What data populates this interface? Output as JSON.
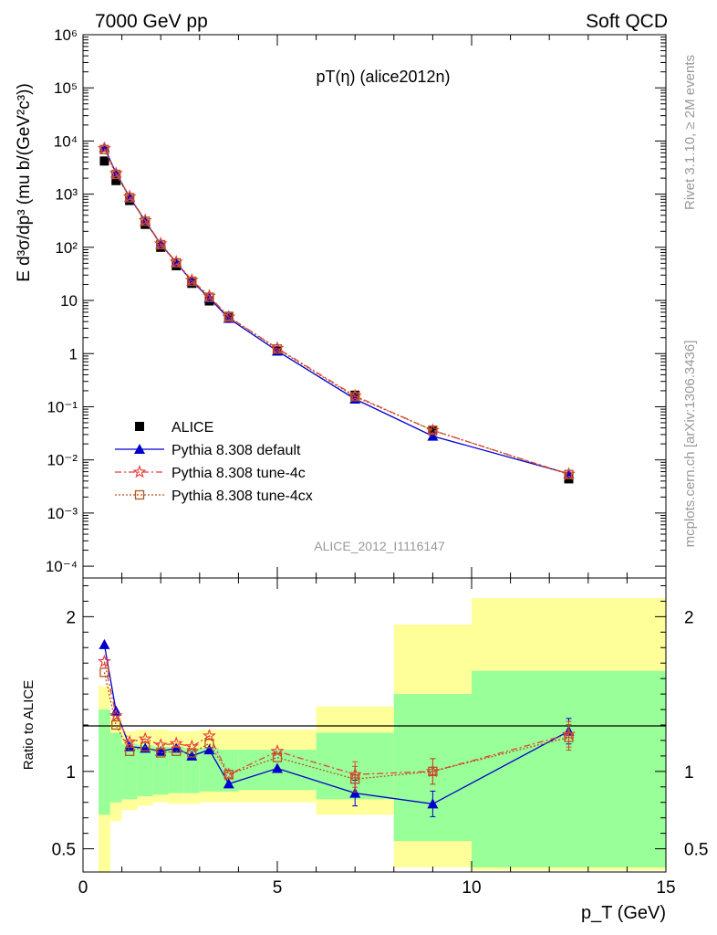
{
  "header": {
    "left": "7000 GeV pp",
    "right": "Soft QCD"
  },
  "side": {
    "rivet": "Rivet 3.1.10, ≥ 2M events",
    "mcplots": "mcplots.cern.ch [arXiv:1306.3436]"
  },
  "watermark": "ALICE_2012_I1116147",
  "chart_data": [
    {
      "type": "line",
      "title": "pT(η) (alice2012n)",
      "ylabel": "E d³σ/dp³ (mu b/(GeV²c³))",
      "yscale": "log",
      "ylim": [
        6e-05,
        1000000
      ],
      "xlim": [
        0,
        15
      ],
      "yticks": [
        "10⁻⁴",
        "10⁻³",
        "10⁻²",
        "10⁻¹",
        "1",
        "10",
        "10²",
        "10³",
        "10⁴",
        "10⁵",
        "10⁶"
      ],
      "legend_position": "bottom-left",
      "x": [
        0.55,
        0.85,
        1.2,
        1.6,
        2.0,
        2.4,
        2.8,
        3.25,
        3.75,
        5.0,
        7.0,
        9.0,
        12.5
      ],
      "series": [
        {
          "name": "ALICE",
          "color": "#000000",
          "marker": "square-filled",
          "values": [
            4200,
            1800,
            760,
            270,
            100,
            45,
            21,
            9.8,
            5.0,
            1.12,
            0.165,
            0.036,
            0.0044
          ]
        },
        {
          "name": "Pythia 8.308 default",
          "color": "#0000cc",
          "marker": "triangle-filled",
          "values": [
            7600,
            2500,
            880,
            310,
            114,
            52,
            23,
            11.1,
            4.6,
            1.12,
            0.14,
            0.028,
            0.0055
          ]
        },
        {
          "name": "Pythia 8.308 tune-4c",
          "color": "#e83f3f",
          "marker": "star-open",
          "values": [
            7200,
            2450,
            900,
            320,
            117,
            53,
            24,
            12.1,
            4.9,
            1.26,
            0.16,
            0.036,
            0.0054
          ]
        },
        {
          "name": "Pythia 8.308 tune-4cx",
          "color": "#b5541e",
          "marker": "square-open",
          "values": [
            6900,
            2350,
            860,
            310,
            112,
            51,
            23,
            11.5,
            4.9,
            1.22,
            0.155,
            0.036,
            0.0053
          ]
        }
      ]
    },
    {
      "type": "line",
      "ylabel": "Ratio to ALICE",
      "xlabel": "p_T (GeV)",
      "xlim": [
        0,
        15
      ],
      "ylim": [
        0.35,
        2.25
      ],
      "yticks": [
        0.5,
        1,
        2
      ],
      "xticks": [
        0,
        5,
        10,
        15
      ],
      "x": [
        0.55,
        0.85,
        1.2,
        1.6,
        2.0,
        2.4,
        2.8,
        3.25,
        3.75,
        5.0,
        7.0,
        9.0,
        12.5
      ],
      "series": [
        {
          "name": "Pythia 8.308 default",
          "color": "#0000cc",
          "values": [
            1.82,
            1.39,
            1.16,
            1.15,
            1.13,
            1.15,
            1.1,
            1.14,
            0.92,
            1.02,
            0.86,
            0.79,
            1.26
          ]
        },
        {
          "name": "Pythia 8.308 tune-4c",
          "color": "#e83f3f",
          "values": [
            1.71,
            1.36,
            1.19,
            1.21,
            1.17,
            1.18,
            1.16,
            1.23,
            0.98,
            1.13,
            0.98,
            1.0,
            1.24
          ]
        },
        {
          "name": "Pythia 8.308 tune-4cx",
          "color": "#b5541e",
          "values": [
            1.64,
            1.3,
            1.13,
            1.16,
            1.12,
            1.13,
            1.12,
            1.18,
            0.98,
            1.09,
            0.95,
            1.0,
            1.22
          ]
        }
      ],
      "bands": {
        "edges": [
          0.4,
          0.7,
          1.0,
          1.4,
          1.8,
          2.2,
          2.6,
          3.0,
          3.5,
          4.0,
          6.0,
          8.0,
          10.0,
          15.0
        ],
        "stat_low": [
          0.72,
          0.8,
          0.82,
          0.84,
          0.85,
          0.86,
          0.86,
          0.87,
          0.87,
          0.88,
          0.82,
          0.55,
          0.38
        ],
        "stat_high": [
          1.4,
          1.25,
          1.18,
          1.17,
          1.16,
          1.16,
          1.15,
          1.15,
          1.14,
          1.14,
          1.25,
          1.5,
          1.65
        ],
        "tot_low": [
          0.35,
          0.68,
          0.75,
          0.78,
          0.8,
          0.79,
          0.79,
          0.8,
          0.8,
          0.8,
          0.72,
          0.38,
          0.36
        ],
        "tot_high": [
          1.55,
          1.35,
          1.26,
          1.27,
          1.27,
          1.26,
          1.26,
          1.27,
          1.27,
          1.27,
          1.42,
          1.95,
          2.12
        ]
      }
    }
  ]
}
